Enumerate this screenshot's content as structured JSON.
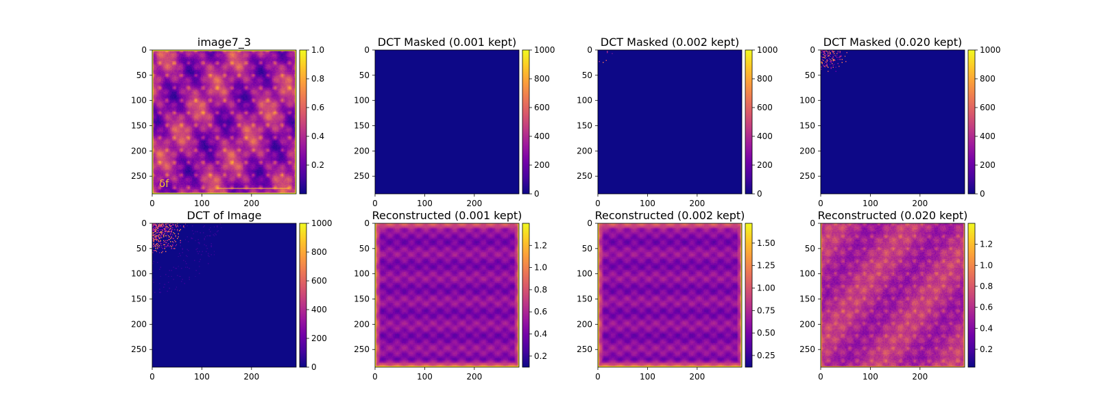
{
  "figure": {
    "colormap": "plasma",
    "colormap_stops": [
      "#0d0887",
      "#46039f",
      "#7201a8",
      "#9c179e",
      "#bd3786",
      "#d8576b",
      "#ed7953",
      "#fb9f3a",
      "#fdca26",
      "#f0f921"
    ]
  },
  "chart_data": [
    {
      "type": "heatmap",
      "title": "image7_3",
      "content": "photo",
      "xticks": [
        0,
        100,
        200
      ],
      "yticks": [
        0,
        50,
        100,
        150,
        200,
        250
      ],
      "xlim": [
        0,
        290
      ],
      "ylim": [
        285,
        0
      ],
      "colorbar": {
        "vmin": 0.0,
        "vmax": 1.0,
        "ticks": [
          0.2,
          0.4,
          0.6,
          0.8,
          1.0
        ],
        "tick_labels": [
          "0.2",
          "0.4",
          "0.6",
          "0.8",
          "1.0"
        ]
      },
      "overlay_labels": [
        "δf"
      ]
    },
    {
      "type": "heatmap",
      "title": "DCT Masked (0.001 kept)",
      "content": "dct_sparse",
      "keep_fraction": 0.001,
      "xticks": [
        0,
        100,
        200
      ],
      "yticks": [
        0,
        50,
        100,
        150,
        200,
        250
      ],
      "xlim": [
        0,
        290
      ],
      "ylim": [
        285,
        0
      ],
      "colorbar": {
        "vmin": 0,
        "vmax": 1000,
        "ticks": [
          0,
          200,
          400,
          600,
          800,
          1000
        ],
        "tick_labels": [
          "0",
          "200",
          "400",
          "600",
          "800",
          "1000"
        ]
      }
    },
    {
      "type": "heatmap",
      "title": "DCT Masked (0.002 kept)",
      "content": "dct_sparse",
      "keep_fraction": 0.002,
      "xticks": [
        0,
        100,
        200
      ],
      "yticks": [
        0,
        50,
        100,
        150,
        200,
        250
      ],
      "xlim": [
        0,
        290
      ],
      "ylim": [
        285,
        0
      ],
      "colorbar": {
        "vmin": 0,
        "vmax": 1000,
        "ticks": [
          0,
          200,
          400,
          600,
          800,
          1000
        ],
        "tick_labels": [
          "0",
          "200",
          "400",
          "600",
          "800",
          "1000"
        ]
      }
    },
    {
      "type": "heatmap",
      "title": "DCT Masked (0.020 kept)",
      "content": "dct_sparse",
      "keep_fraction": 0.02,
      "xticks": [
        0,
        100,
        200
      ],
      "yticks": [
        0,
        50,
        100,
        150,
        200,
        250
      ],
      "xlim": [
        0,
        290
      ],
      "ylim": [
        285,
        0
      ],
      "colorbar": {
        "vmin": 0,
        "vmax": 1000,
        "ticks": [
          0,
          200,
          400,
          600,
          800,
          1000
        ],
        "tick_labels": [
          "0",
          "200",
          "400",
          "600",
          "800",
          "1000"
        ]
      }
    },
    {
      "type": "heatmap",
      "title": "DCT of Image",
      "content": "dct_full",
      "xticks": [
        0,
        100,
        200
      ],
      "yticks": [
        0,
        50,
        100,
        150,
        200,
        250
      ],
      "xlim": [
        0,
        290
      ],
      "ylim": [
        285,
        0
      ],
      "colorbar": {
        "vmin": 0,
        "vmax": 1000,
        "ticks": [
          0,
          200,
          400,
          600,
          800,
          1000
        ],
        "tick_labels": [
          "0",
          "200",
          "400",
          "600",
          "800",
          "1000"
        ]
      }
    },
    {
      "type": "heatmap",
      "title": "Reconstructed (0.001 kept)",
      "content": "recon",
      "keep_fraction": 0.001,
      "xticks": [
        0,
        100,
        200
      ],
      "yticks": [
        0,
        50,
        100,
        150,
        200,
        250
      ],
      "xlim": [
        0,
        290
      ],
      "ylim": [
        285,
        0
      ],
      "colorbar": {
        "vmin": 0.1,
        "vmax": 1.4,
        "ticks": [
          0.2,
          0.4,
          0.6,
          0.8,
          1.0,
          1.2
        ],
        "tick_labels": [
          "0.2",
          "0.4",
          "0.6",
          "0.8",
          "1.0",
          "1.2"
        ]
      }
    },
    {
      "type": "heatmap",
      "title": "Reconstructed (0.002 kept)",
      "content": "recon",
      "keep_fraction": 0.002,
      "xticks": [
        0,
        100,
        200
      ],
      "yticks": [
        0,
        50,
        100,
        150,
        200,
        250
      ],
      "xlim": [
        0,
        290
      ],
      "ylim": [
        285,
        0
      ],
      "colorbar": {
        "vmin": 0.12,
        "vmax": 1.72,
        "ticks": [
          0.25,
          0.5,
          0.75,
          1.0,
          1.25,
          1.5
        ],
        "tick_labels": [
          "0.25",
          "0.50",
          "0.75",
          "1.00",
          "1.25",
          "1.50"
        ]
      }
    },
    {
      "type": "heatmap",
      "title": "Reconstructed (0.020 kept)",
      "content": "recon",
      "keep_fraction": 0.02,
      "xticks": [
        0,
        100,
        200
      ],
      "yticks": [
        0,
        50,
        100,
        150,
        200,
        250
      ],
      "xlim": [
        0,
        290
      ],
      "ylim": [
        285,
        0
      ],
      "colorbar": {
        "vmin": 0.03,
        "vmax": 1.4,
        "ticks": [
          0.2,
          0.4,
          0.6,
          0.8,
          1.0,
          1.2
        ],
        "tick_labels": [
          "0.2",
          "0.4",
          "0.6",
          "0.8",
          "1.0",
          "1.2"
        ]
      }
    }
  ]
}
